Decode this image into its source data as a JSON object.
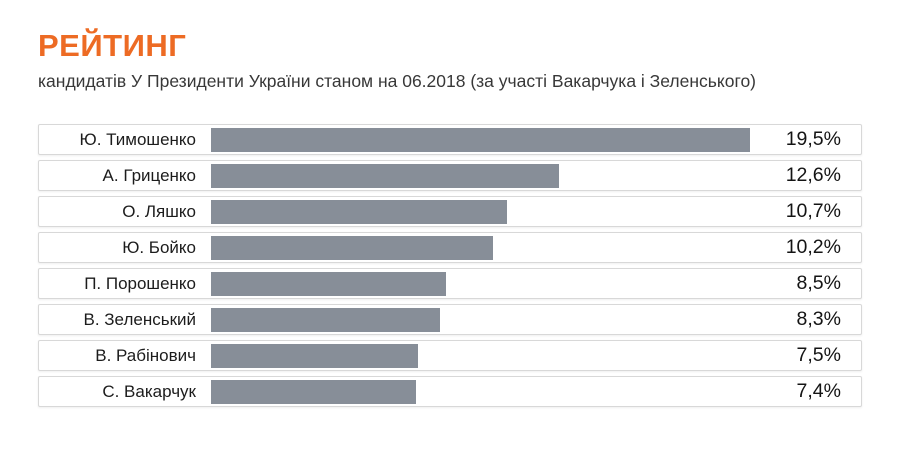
{
  "header": {
    "title": "РЕЙТИНГ",
    "subtitle": "кандидатів У Президенти України станом на 06.2018 (за участі Вакарчука і Зеленського)"
  },
  "colors": {
    "accent_orange": "#ed6b24",
    "bar_gray": "#878e98",
    "row_border": "#d8d8d8",
    "name_text": "#1c1c1c",
    "percent_text": "#141414",
    "subtitle_text": "#383838",
    "background": "#ffffff"
  },
  "chart_data": {
    "type": "bar",
    "orientation": "horizontal",
    "title": "РЕЙТИНГ",
    "subtitle": "кандидатів У Президенти України станом на 06.2018 (за участі Вакарчука і Зеленського)",
    "xlabel": "",
    "ylabel": "",
    "value_unit": "%",
    "decimal_separator": ",",
    "grid": false,
    "legend": false,
    "max_value": 19.5,
    "categories": [
      "Ю. Тимошенко",
      "А. Гриценко",
      "О. Ляшко",
      "Ю. Бойко",
      "П. Порошенко",
      "В. Зеленський",
      "В. Рабінович",
      "С. Вакарчук"
    ],
    "values": [
      19.5,
      12.6,
      10.7,
      10.2,
      8.5,
      8.3,
      7.5,
      7.4
    ],
    "value_labels": [
      "19,5%",
      "12,6%",
      "10,7%",
      "10,2%",
      "8,5%",
      "8,3%",
      "7,5%",
      "7,4%"
    ]
  }
}
